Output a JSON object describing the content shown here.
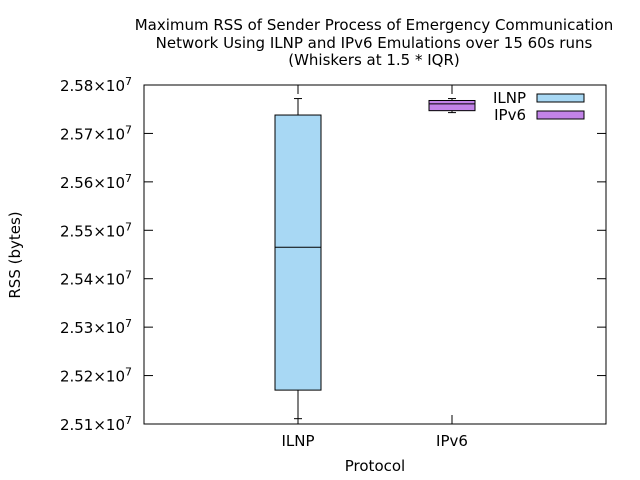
{
  "chart_data": {
    "type": "boxplot",
    "title_lines": [
      "Maximum RSS of Sender Process of Emergency Communication",
      "Network Using ILNP and IPv6 Emulations over 15 60s runs",
      "(Whiskers at 1.5 * IQR)"
    ],
    "xlabel": "Protocol",
    "ylabel": "RSS (bytes)",
    "categories": [
      "ILNP",
      "IPv6"
    ],
    "ylim": [
      25100000,
      25800000
    ],
    "yticks": [
      {
        "value": 25100000,
        "mantissa": "2.51",
        "exponent": "7"
      },
      {
        "value": 25200000,
        "mantissa": "2.52",
        "exponent": "7"
      },
      {
        "value": 25300000,
        "mantissa": "2.53",
        "exponent": "7"
      },
      {
        "value": 25400000,
        "mantissa": "2.54",
        "exponent": "7"
      },
      {
        "value": 25500000,
        "mantissa": "2.55",
        "exponent": "7"
      },
      {
        "value": 25600000,
        "mantissa": "2.56",
        "exponent": "7"
      },
      {
        "value": 25700000,
        "mantissa": "2.57",
        "exponent": "7"
      },
      {
        "value": 25800000,
        "mantissa": "2.58",
        "exponent": "7"
      }
    ],
    "tick_times_sign": "×10",
    "grid": false,
    "legend_position": "top-right",
    "series": [
      {
        "name": "ILNP",
        "color": "#a8d8f4",
        "whisker_low": 25111000,
        "q1": 25170000,
        "median": 25465000,
        "q3": 25738000,
        "whisker_high": 25772000
      },
      {
        "name": "IPv6",
        "color": "#c283e8",
        "whisker_low": 25743000,
        "q1": 25747000,
        "median": 25761000,
        "q3": 25768000,
        "whisker_high": 25772000
      }
    ]
  }
}
